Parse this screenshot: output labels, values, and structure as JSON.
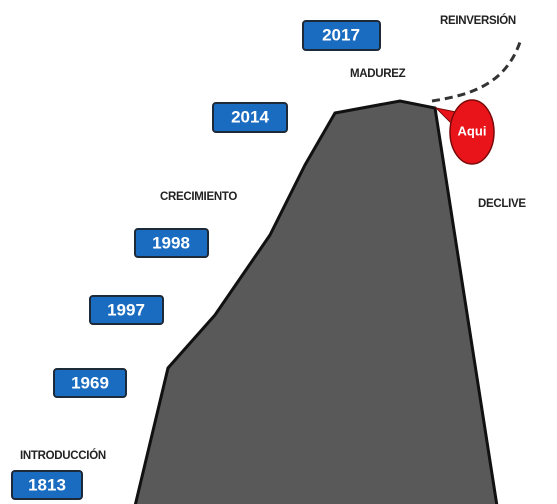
{
  "stages": [
    "INTRODUCCIÓN",
    "CRECIMIENTO",
    "MADUREZ",
    "DECLIVE",
    "REINVERSIÓN"
  ],
  "years": [
    "1813",
    "1969",
    "1997",
    "1998",
    "2014",
    "2017"
  ],
  "callout": "Aqui"
}
